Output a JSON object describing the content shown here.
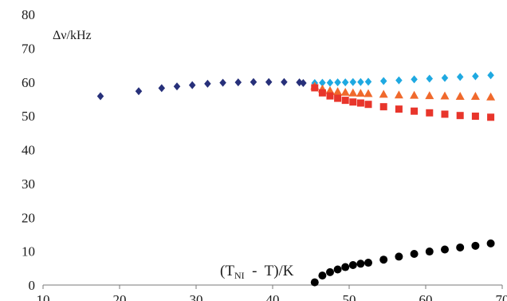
{
  "chart_data": {
    "type": "scatter",
    "title": "",
    "ylabel": "Δν/kHz",
    "xlabel_main": "(T",
    "xlabel_sub": "NI",
    "xlabel_rest": "  -  T)/K",
    "xlim": [
      10,
      70
    ],
    "ylim": [
      0,
      80
    ],
    "x_ticks": [
      10,
      20,
      30,
      40,
      50,
      60,
      70
    ],
    "y_ticks": [
      0,
      10,
      20,
      30,
      40,
      50,
      60,
      70,
      80
    ],
    "grid": false,
    "legend": "none",
    "series": [
      {
        "marker": "diamond",
        "color": "#27307a",
        "x": [
          17.5,
          22.5,
          25.5,
          27.5,
          29.5,
          31.5,
          33.5,
          35.5,
          37.5,
          39.5,
          41.5,
          43.5,
          44.0
        ],
        "y": [
          55.8,
          57.3,
          58.2,
          58.7,
          59.1,
          59.5,
          59.8,
          59.9,
          60.0,
          60.0,
          60.0,
          59.9,
          59.7
        ]
      },
      {
        "marker": "diamond",
        "color": "#1fa9e1",
        "x": [
          45.5,
          46.5,
          47.5,
          48.5,
          49.5,
          50.5,
          51.5,
          52.5,
          54.5,
          56.5,
          58.5,
          60.5,
          62.5,
          64.5,
          66.5,
          68.5
        ],
        "y": [
          59.7,
          59.8,
          59.8,
          59.9,
          59.9,
          60.0,
          60.0,
          60.1,
          60.3,
          60.5,
          60.8,
          61.0,
          61.2,
          61.5,
          61.7,
          62.0
        ]
      },
      {
        "marker": "triangle",
        "color": "#f0692c",
        "x": [
          45.5,
          46.5,
          47.5,
          48.5,
          49.5,
          50.5,
          51.5,
          52.5,
          54.5,
          56.5,
          58.5,
          60.5,
          62.5,
          64.5,
          66.5,
          68.5
        ],
        "y": [
          58.8,
          58.0,
          57.5,
          57.2,
          57.0,
          56.8,
          56.7,
          56.6,
          56.4,
          56.2,
          56.1,
          56.0,
          55.9,
          55.8,
          55.8,
          55.6
        ]
      },
      {
        "marker": "square",
        "color": "#e8352b",
        "x": [
          45.5,
          46.5,
          47.5,
          48.5,
          49.5,
          50.5,
          51.5,
          52.5,
          54.5,
          56.5,
          58.5,
          60.5,
          62.5,
          64.5,
          66.5,
          68.5
        ],
        "y": [
          58.3,
          56.8,
          55.9,
          55.2,
          54.6,
          54.1,
          53.8,
          53.4,
          52.7,
          52.0,
          51.4,
          50.9,
          50.5,
          50.1,
          49.9,
          49.6
        ]
      },
      {
        "marker": "circle",
        "color": "#000000",
        "x": [
          45.5,
          46.5,
          47.5,
          48.5,
          49.5,
          50.5,
          51.5,
          52.5,
          54.5,
          56.5,
          58.5,
          60.5,
          62.5,
          64.5,
          66.5,
          68.5
        ],
        "y": [
          0.8,
          2.8,
          3.8,
          4.6,
          5.3,
          5.9,
          6.3,
          6.6,
          7.5,
          8.4,
          9.2,
          9.9,
          10.5,
          11.1,
          11.6,
          12.3
        ]
      }
    ]
  }
}
